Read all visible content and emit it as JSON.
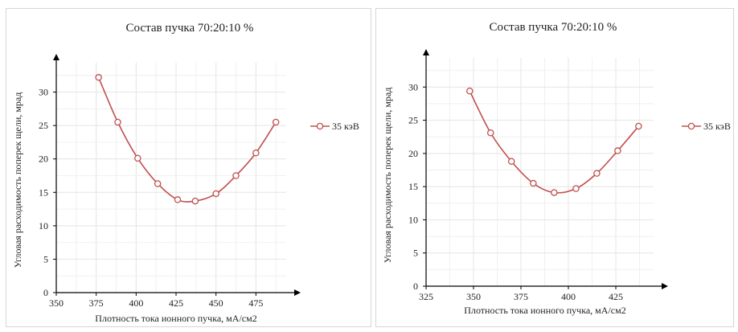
{
  "chart_data": [
    {
      "type": "line",
      "title": "Состав пучка 70:20:10 %",
      "xlabel": "Плотность тока ионного пучка, мА/см2",
      "ylabel": "Угловая расходимость поперек щели, мрад",
      "xlim": [
        350,
        500
      ],
      "ylim": [
        0,
        35
      ],
      "xticks": [
        "350",
        "375",
        "400",
        "425",
        "450",
        "475"
      ],
      "yticks": [
        "0",
        "5",
        "10",
        "15",
        "20",
        "25",
        "30"
      ],
      "grid": true,
      "legend_position": "right",
      "smooth": true,
      "series": [
        {
          "name": "35 кэВ",
          "color": "#c0504d",
          "x": [
            376.5,
            388.5,
            401,
            413.5,
            426,
            437,
            450,
            462.5,
            475,
            487.5
          ],
          "y": [
            32.2,
            25.5,
            20.1,
            16.3,
            13.9,
            13.7,
            14.8,
            17.5,
            20.9,
            25.5
          ]
        }
      ]
    },
    {
      "type": "line",
      "title": "Состав пучка 70:20:10 %",
      "xlabel": "Плотность тока ионного пучка, мА/см2",
      "ylabel": "Угловая расходимость поперек щели, мрад",
      "xlim": [
        325,
        450
      ],
      "ylim": [
        0,
        35
      ],
      "xticks": [
        "325",
        "350",
        "375",
        "400",
        "425"
      ],
      "yticks": [
        "0",
        "5",
        "10",
        "15",
        "20",
        "25",
        "30"
      ],
      "grid": true,
      "legend_position": "right",
      "smooth": true,
      "series": [
        {
          "name": "35 кэВ",
          "color": "#c0504d",
          "x": [
            348,
            359,
            370,
            381.5,
            392.5,
            404,
            415,
            426,
            437
          ],
          "y": [
            29.4,
            23.1,
            18.8,
            15.5,
            14.1,
            14.7,
            17.0,
            20.4,
            24.1
          ]
        }
      ]
    }
  ]
}
